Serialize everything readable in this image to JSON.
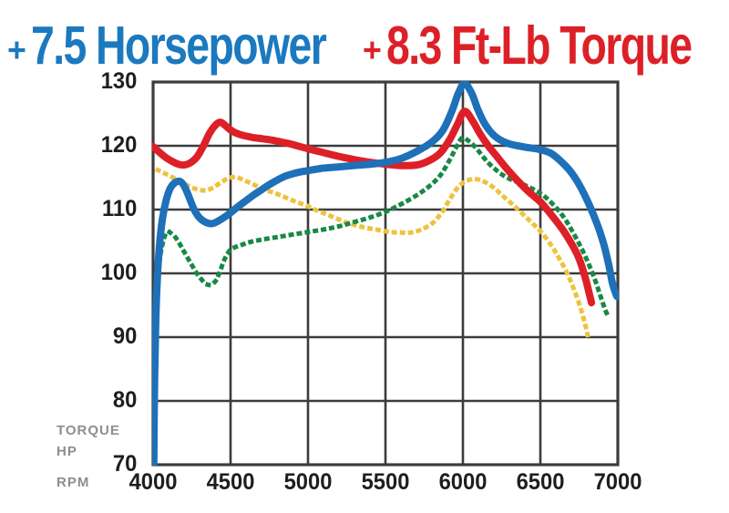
{
  "headline": {
    "hp_plus": "+",
    "hp_text": "7.5 Horsepower",
    "hp_color": "#1b79bf",
    "torque_plus": "+",
    "torque_text": "8.3 Ft-Lb Torque",
    "torque_color": "#dd2027"
  },
  "axis_labels": {
    "y_unit_line1": "TORQUE",
    "y_unit_line2": "HP",
    "x_unit": "RPM"
  },
  "chart_data": {
    "type": "line",
    "title": "+ 7.5 Horsepower + 8.3 Ft-Lb Torque",
    "xlabel": "RPM",
    "ylabel": "TORQUE / HP",
    "xlim": [
      4000,
      7000
    ],
    "ylim": [
      70,
      130
    ],
    "x_ticks": [
      4000,
      4500,
      5000,
      5500,
      6000,
      6500,
      7000
    ],
    "y_ticks": [
      130,
      120,
      110,
      100,
      90,
      80,
      70
    ],
    "grid": true,
    "grid_color": "#3c3c3c",
    "legend_position": "none",
    "series": [
      {
        "name": "yellow-dotted-stock-torque",
        "color": "#edc33d",
        "style": "dotted",
        "points": [
          [
            4030,
            116.2
          ],
          [
            4080,
            115.6
          ],
          [
            4130,
            115
          ],
          [
            4180,
            114.3
          ],
          [
            4230,
            113.7
          ],
          [
            4280,
            113.2
          ],
          [
            4335,
            113
          ],
          [
            4385,
            113.4
          ],
          [
            4435,
            114.2
          ],
          [
            4485,
            114.9
          ],
          [
            4535,
            115.1
          ],
          [
            4585,
            114.6
          ],
          [
            4635,
            114.1
          ],
          [
            4685,
            113.5
          ],
          [
            4735,
            113
          ],
          [
            4785,
            112.6
          ],
          [
            4835,
            112.1
          ],
          [
            4885,
            111.6
          ],
          [
            4935,
            111.1
          ],
          [
            4985,
            110.7
          ],
          [
            5035,
            110.1
          ],
          [
            5105,
            109.4
          ],
          [
            5175,
            108.7
          ],
          [
            5245,
            108
          ],
          [
            5315,
            107.5
          ],
          [
            5385,
            107.1
          ],
          [
            5455,
            106.8
          ],
          [
            5525,
            106.5
          ],
          [
            5595,
            106.4
          ],
          [
            5665,
            106.4
          ],
          [
            5735,
            106.9
          ],
          [
            5805,
            107.9
          ],
          [
            5865,
            109.6
          ],
          [
            5915,
            111.6
          ],
          [
            5965,
            113.4
          ],
          [
            6015,
            114.4
          ],
          [
            6075,
            114.8
          ],
          [
            6135,
            114.4
          ],
          [
            6195,
            113.5
          ],
          [
            6255,
            112.2
          ],
          [
            6325,
            110.7
          ],
          [
            6395,
            109.1
          ],
          [
            6455,
            107.7
          ],
          [
            6515,
            106.2
          ],
          [
            6575,
            104.2
          ],
          [
            6625,
            102.2
          ],
          [
            6675,
            99.9
          ],
          [
            6715,
            97.6
          ],
          [
            6755,
            94.9
          ],
          [
            6785,
            92.4
          ],
          [
            6805,
            90.3
          ]
        ]
      },
      {
        "name": "green-dotted-stock-horsepower",
        "color": "#168945",
        "style": "dotted",
        "points": [
          [
            4005,
            84
          ],
          [
            4010,
            89
          ],
          [
            4018,
            94
          ],
          [
            4030,
            99
          ],
          [
            4045,
            102.5
          ],
          [
            4065,
            105
          ],
          [
            4090,
            106.5
          ],
          [
            4120,
            106.2
          ],
          [
            4155,
            105.3
          ],
          [
            4200,
            103.4
          ],
          [
            4250,
            101.3
          ],
          [
            4300,
            99.4
          ],
          [
            4355,
            98.2
          ],
          [
            4400,
            98.7
          ],
          [
            4430,
            100.2
          ],
          [
            4465,
            102.4
          ],
          [
            4505,
            103.8
          ],
          [
            4565,
            104.4
          ],
          [
            4625,
            104.9
          ],
          [
            4705,
            105.3
          ],
          [
            4805,
            105.7
          ],
          [
            4905,
            106.1
          ],
          [
            5005,
            106.5
          ],
          [
            5105,
            106.9
          ],
          [
            5205,
            107.4
          ],
          [
            5305,
            108.1
          ],
          [
            5405,
            108.8
          ],
          [
            5505,
            109.7
          ],
          [
            5605,
            110.9
          ],
          [
            5705,
            112.3
          ],
          [
            5785,
            113.7
          ],
          [
            5855,
            115.4
          ],
          [
            5915,
            117.8
          ],
          [
            5960,
            119.9
          ],
          [
            5995,
            121.2
          ],
          [
            6040,
            120.7
          ],
          [
            6090,
            119.5
          ],
          [
            6150,
            117.7
          ],
          [
            6215,
            116.2
          ],
          [
            6285,
            115
          ],
          [
            6365,
            114.2
          ],
          [
            6445,
            113.3
          ],
          [
            6525,
            112.1
          ],
          [
            6605,
            110.2
          ],
          [
            6665,
            108.3
          ],
          [
            6720,
            106
          ],
          [
            6770,
            103.7
          ],
          [
            6815,
            101.3
          ],
          [
            6855,
            98.8
          ],
          [
            6890,
            96.3
          ],
          [
            6920,
            94.2
          ],
          [
            6935,
            93.4
          ]
        ]
      },
      {
        "name": "red-solid-modified-torque",
        "color": "#dd2027",
        "style": "solid",
        "points": [
          [
            4000,
            119.9
          ],
          [
            4040,
            119
          ],
          [
            4080,
            118.2
          ],
          [
            4120,
            117.6
          ],
          [
            4165,
            117.1
          ],
          [
            4205,
            117
          ],
          [
            4245,
            117.4
          ],
          [
            4285,
            118.3
          ],
          [
            4325,
            120
          ],
          [
            4365,
            122
          ],
          [
            4405,
            123.3
          ],
          [
            4435,
            123.7
          ],
          [
            4465,
            123.2
          ],
          [
            4505,
            122.4
          ],
          [
            4545,
            121.9
          ],
          [
            4585,
            121.6
          ],
          [
            4645,
            121.3
          ],
          [
            4705,
            121.1
          ],
          [
            4765,
            120.9
          ],
          [
            4825,
            120.6
          ],
          [
            4885,
            120.3
          ],
          [
            4945,
            119.9
          ],
          [
            5005,
            119.5
          ],
          [
            5105,
            118.9
          ],
          [
            5205,
            118.3
          ],
          [
            5305,
            117.8
          ],
          [
            5405,
            117.4
          ],
          [
            5505,
            117.1
          ],
          [
            5605,
            116.9
          ],
          [
            5705,
            117
          ],
          [
            5785,
            117.7
          ],
          [
            5855,
            118.9
          ],
          [
            5915,
            121
          ],
          [
            5965,
            123.4
          ],
          [
            6010,
            125.4
          ],
          [
            6060,
            124
          ],
          [
            6110,
            121.9
          ],
          [
            6160,
            120.1
          ],
          [
            6220,
            118.3
          ],
          [
            6280,
            116.5
          ],
          [
            6350,
            114.6
          ],
          [
            6420,
            112.9
          ],
          [
            6500,
            111.2
          ],
          [
            6570,
            109.2
          ],
          [
            6640,
            107
          ],
          [
            6700,
            104.7
          ],
          [
            6750,
            102.3
          ],
          [
            6790,
            99.3
          ],
          [
            6815,
            96.9
          ],
          [
            6830,
            95.4
          ]
        ]
      },
      {
        "name": "blue-solid-modified-horsepower",
        "color": "#1e70b8",
        "style": "solid",
        "points": [
          [
            4005,
            70
          ],
          [
            4008,
            80
          ],
          [
            4015,
            90
          ],
          [
            4025,
            98
          ],
          [
            4040,
            104
          ],
          [
            4060,
            108.5
          ],
          [
            4085,
            111.5
          ],
          [
            4110,
            113.3
          ],
          [
            4140,
            114.2
          ],
          [
            4175,
            114.4
          ],
          [
            4205,
            113.5
          ],
          [
            4235,
            111.8
          ],
          [
            4265,
            110
          ],
          [
            4300,
            108.7
          ],
          [
            4340,
            108
          ],
          [
            4380,
            107.8
          ],
          [
            4420,
            108.2
          ],
          [
            4460,
            108.8
          ],
          [
            4500,
            109.5
          ],
          [
            4550,
            110.5
          ],
          [
            4600,
            111.4
          ],
          [
            4650,
            112.3
          ],
          [
            4700,
            113.1
          ],
          [
            4750,
            113.9
          ],
          [
            4800,
            114.6
          ],
          [
            4850,
            115.2
          ],
          [
            4900,
            115.6
          ],
          [
            4950,
            115.9
          ],
          [
            5000,
            116.1
          ],
          [
            5100,
            116.5
          ],
          [
            5200,
            116.7
          ],
          [
            5300,
            116.9
          ],
          [
            5400,
            117.1
          ],
          [
            5500,
            117.4
          ],
          [
            5600,
            118
          ],
          [
            5700,
            119.1
          ],
          [
            5800,
            120.6
          ],
          [
            5870,
            122.4
          ],
          [
            5930,
            125.5
          ],
          [
            5970,
            128.2
          ],
          [
            6010,
            129.8
          ],
          [
            6055,
            128.3
          ],
          [
            6095,
            125.8
          ],
          [
            6135,
            123.7
          ],
          [
            6185,
            122
          ],
          [
            6235,
            121
          ],
          [
            6300,
            120.3
          ],
          [
            6400,
            119.8
          ],
          [
            6500,
            119.4
          ],
          [
            6570,
            118.8
          ],
          [
            6640,
            117.4
          ],
          [
            6700,
            115.8
          ],
          [
            6760,
            113.5
          ],
          [
            6820,
            110.5
          ],
          [
            6870,
            107.5
          ],
          [
            6910,
            104.5
          ],
          [
            6940,
            101.5
          ],
          [
            6965,
            98.5
          ],
          [
            6990,
            96.6
          ],
          [
            7000,
            96.3
          ]
        ]
      }
    ]
  }
}
